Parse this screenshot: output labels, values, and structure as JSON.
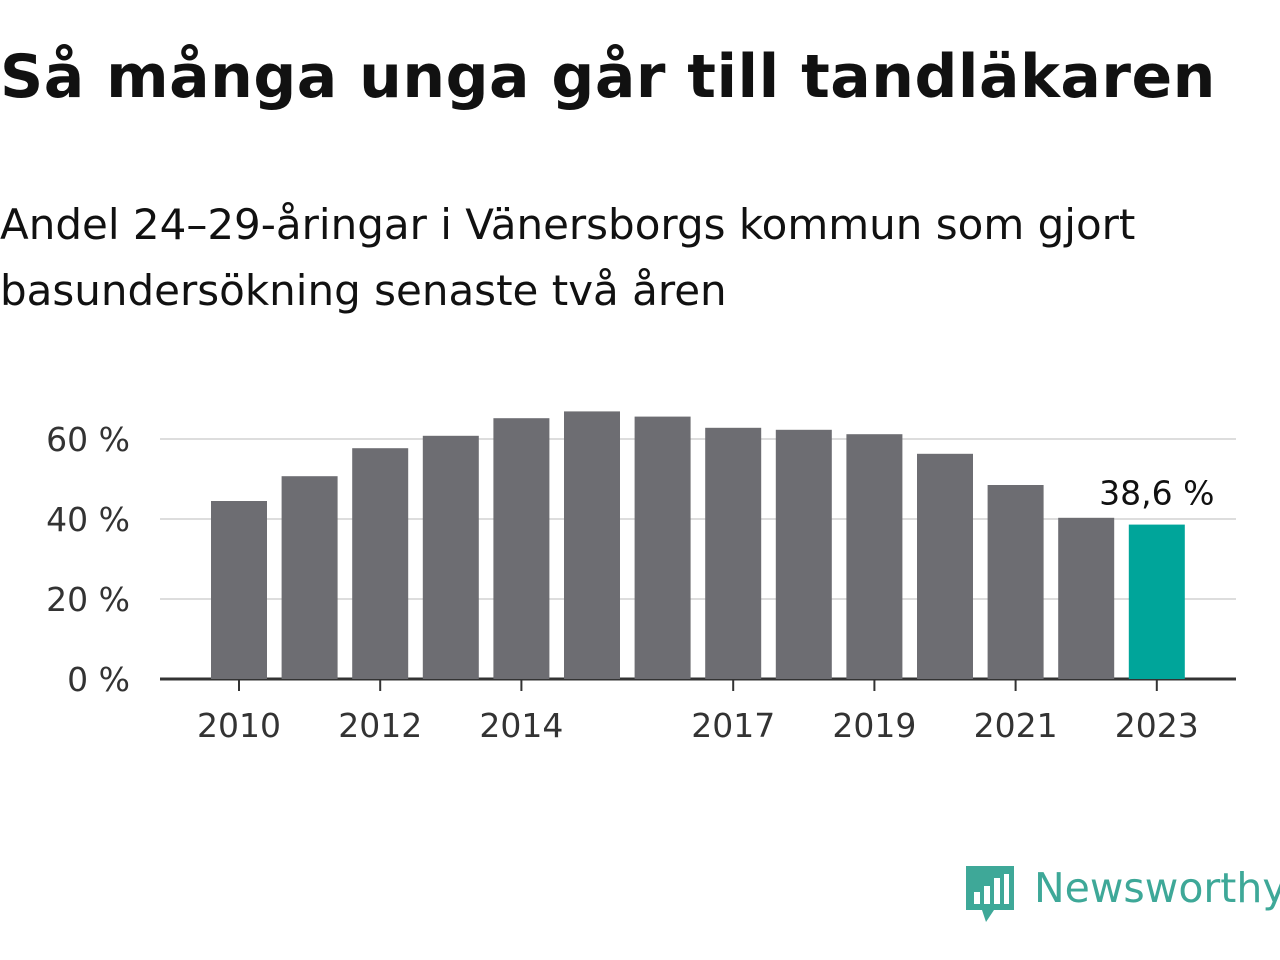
{
  "title": "Så många unga går till tandläkaren",
  "subtitle": "Andel 24–29-åringar i Vänersborgs kommun som gjort basundersökning senaste två åren",
  "brand": {
    "name": "Newsworthy",
    "icon": "newsworthy-logo-icon",
    "color": "#3ea898"
  },
  "chart_data": {
    "type": "bar",
    "title": "Så många unga går till tandläkaren",
    "subtitle": "Andel 24–29-åringar i Vänersborgs kommun som gjort basundersökning senaste två åren",
    "xlabel": "",
    "ylabel": "",
    "categories": [
      "2010",
      "2011",
      "2012",
      "2013",
      "2014",
      "2015",
      "2016",
      "2017",
      "2018",
      "2019",
      "2020",
      "2021",
      "2022",
      "2023"
    ],
    "x_tick_labels": [
      "2010",
      "2012",
      "2014",
      "2017",
      "2019",
      "2021",
      "2023"
    ],
    "values": [
      44.5,
      50.7,
      57.7,
      60.8,
      65.2,
      66.9,
      65.6,
      62.8,
      62.3,
      61.2,
      56.3,
      48.5,
      40.3,
      38.6
    ],
    "unit": "%",
    "ylim": [
      0,
      70
    ],
    "y_ticks": [
      0,
      20,
      40,
      60
    ],
    "y_tick_labels": [
      "0 %",
      "20 %",
      "40 %",
      "60 %"
    ],
    "grid": true,
    "bar_color": "#6d6d72",
    "highlight_color": "#00a59a",
    "highlight": {
      "category": "2023",
      "label": "38,6 %"
    }
  }
}
